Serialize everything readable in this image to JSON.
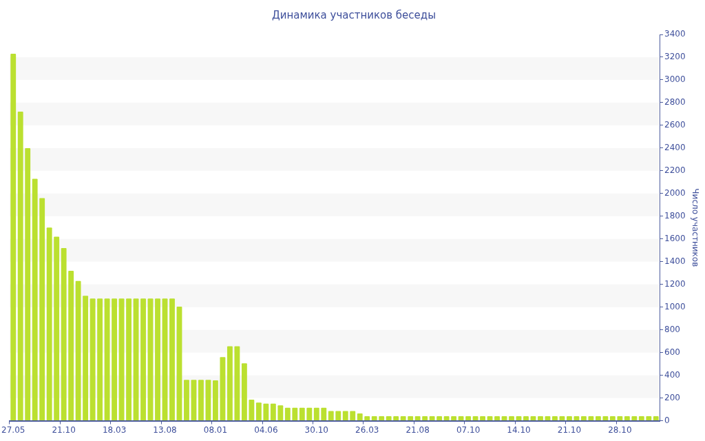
{
  "chart_data": {
    "type": "bar",
    "title": "Динамика участников беседы",
    "ylabel": "Число участников",
    "categories": [
      "27.05",
      null,
      null,
      null,
      null,
      null,
      null,
      "21.10",
      null,
      null,
      null,
      null,
      null,
      null,
      "18.03",
      null,
      null,
      null,
      null,
      null,
      null,
      "13.08",
      null,
      null,
      null,
      null,
      null,
      null,
      "08.01",
      null,
      null,
      null,
      null,
      null,
      null,
      "04.06",
      null,
      null,
      null,
      null,
      null,
      null,
      "30.10",
      null,
      null,
      null,
      null,
      null,
      null,
      "26.03",
      null,
      null,
      null,
      null,
      null,
      null,
      "21.08",
      null,
      null,
      null,
      null,
      null,
      null,
      "07.10",
      null,
      null,
      null,
      null,
      null,
      null,
      "14.10",
      null,
      null,
      null,
      null,
      null,
      null,
      "21.10",
      null,
      null,
      null,
      null,
      null,
      null,
      "28.10",
      null,
      null,
      null,
      null,
      null
    ],
    "values": [
      3230,
      2720,
      2400,
      2130,
      1960,
      1700,
      1620,
      1520,
      1320,
      1230,
      1100,
      1075,
      1075,
      1075,
      1075,
      1075,
      1075,
      1075,
      1075,
      1075,
      1075,
      1075,
      1075,
      1005,
      360,
      360,
      360,
      360,
      355,
      560,
      655,
      655,
      505,
      185,
      160,
      150,
      150,
      135,
      115,
      115,
      115,
      115,
      115,
      115,
      85,
      85,
      85,
      85,
      65,
      40,
      40,
      40,
      40,
      40,
      40,
      40,
      40,
      40,
      40,
      40,
      40,
      40,
      40,
      40,
      40,
      40,
      40,
      40,
      40,
      40,
      40,
      40,
      40,
      40,
      40,
      40,
      40,
      40,
      40,
      40,
      40,
      40,
      40,
      40,
      40,
      40,
      40,
      40,
      40,
      40
    ],
    "color": "#bbe030",
    "ylim": [
      0,
      3400
    ],
    "yticks": [
      0,
      200,
      400,
      600,
      800,
      1000,
      1200,
      1400,
      1600,
      1800,
      2000,
      2200,
      2400,
      2600,
      2800,
      3000,
      3200,
      3400
    ],
    "bands": [
      {
        "axis": "y",
        "from": 200,
        "to": 400,
        "color": "#f7f7f7"
      },
      {
        "axis": "y",
        "from": 600,
        "to": 800,
        "color": "#f7f7f7"
      },
      {
        "axis": "y",
        "from": 1000,
        "to": 1200,
        "color": "#f7f7f7"
      },
      {
        "axis": "y",
        "from": 1400,
        "to": 1600,
        "color": "#f7f7f7"
      },
      {
        "axis": "y",
        "from": 1800,
        "to": 2000,
        "color": "#f7f7f7"
      },
      {
        "axis": "y",
        "from": 2200,
        "to": 2400,
        "color": "#f7f7f7"
      },
      {
        "axis": "y",
        "from": 2600,
        "to": 2800,
        "color": "#f7f7f7"
      },
      {
        "axis": "y",
        "from": 3000,
        "to": 3200,
        "color": "#f7f7f7"
      }
    ],
    "legend": false
  }
}
